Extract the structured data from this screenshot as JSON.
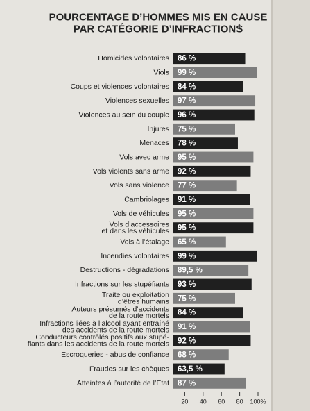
{
  "chart_data": {
    "type": "hbar",
    "title": "POURCENTAGE D’HOMMES MIS EN CAUSE\nPAR CATÉGORIE D’INFRACTIONS",
    "title_superscript": "1",
    "categories": [
      "Homicides volontaires",
      "Viols",
      "Coups et violences volontaires",
      "Violences sexuelles",
      "Violences au sein du couple",
      "Injures",
      "Menaces",
      "Vols avec arme",
      "Vols violents sans arme",
      "Vols sans violence",
      "Cambriolages",
      "Vols de véhicules",
      "Vols d’accessoires\net dans les véhicules",
      "Vols à l’étalage",
      "Incendies volontaires",
      "Destructions - dégradations",
      "Infractions sur les stupéfiants",
      "Traite ou exploitation\nd’êtres humains",
      "Auteurs présumés d’accidents\nde la route mortels",
      "Infractions liées à l’alcool ayant entraîné\ndes accidents de la route mortels",
      "Conducteurs contrôlés positifs aux stupé-\nfiants dans les accidents de la route mortels",
      "Escroqueries - abus de confiance",
      "Fraudes sur les chèques",
      "Atteintes à l’autorité de l’Etat"
    ],
    "values": [
      86,
      99,
      84,
      97,
      96,
      75,
      78,
      95,
      92,
      77,
      91,
      95,
      95,
      65,
      99,
      89.5,
      93,
      75,
      84,
      91,
      92,
      68,
      63.5,
      87
    ],
    "value_labels": [
      "86 %",
      "99 %",
      "84 %",
      "97 %",
      "96 %",
      "75 %",
      "78 %",
      "95 %",
      "92 %",
      "77 %",
      "91 %",
      "95 %",
      "95 %",
      "65 %",
      "99 %",
      "89,5 %",
      "93 %",
      "75 %",
      "84 %",
      "91 %",
      "92 %",
      "68 %",
      "63,5 %",
      "87 %"
    ],
    "colors": [
      "#1f1f1f",
      "#7d7d7d"
    ],
    "xlim": [
      0,
      100
    ],
    "xticks": [
      20,
      40,
      60,
      80,
      {
        "value": 100,
        "label": "100%"
      }
    ]
  }
}
